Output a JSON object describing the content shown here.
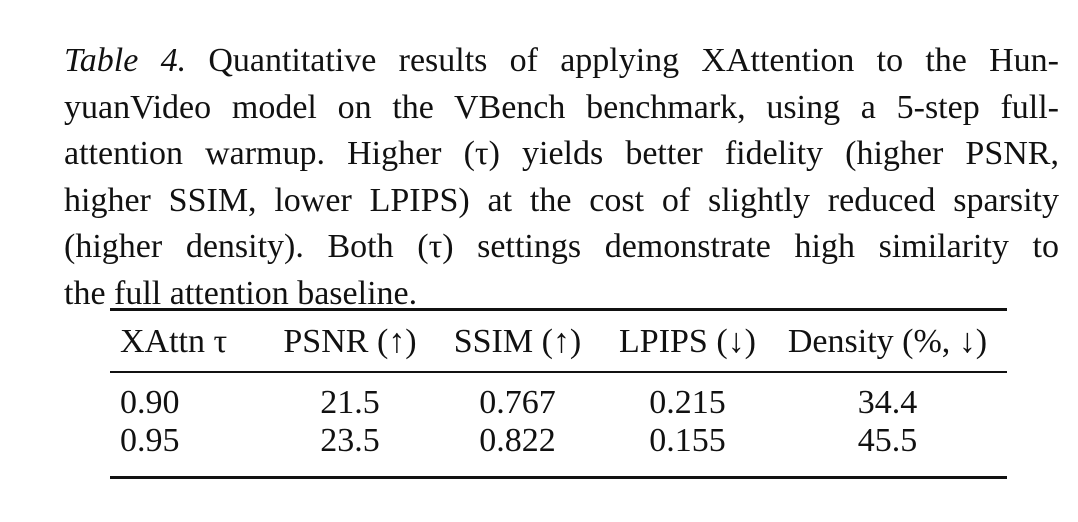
{
  "caption": {
    "label": "Table 4.",
    "lines": [
      " Quantitative results of applying XAttention to the Hun-",
      "yuanVideo model on the VBench benchmark, using a 5-step full-",
      "attention warmup. Higher (τ) yields better fidelity (higher PSNR,",
      "higher SSIM, lower LPIPS) at the cost of slightly reduced sparsity",
      "(higher density). Both (τ) settings demonstrate high similarity to",
      "the full attention baseline."
    ]
  },
  "table": {
    "headers": [
      "XAttn τ",
      "PSNR (↑)",
      "SSIM (↑)",
      "LPIPS (↓)",
      "Density (%, ↓)"
    ],
    "rows": [
      [
        "0.90",
        "21.5",
        "0.767",
        "0.215",
        "34.4"
      ],
      [
        "0.95",
        "23.5",
        "0.822",
        "0.155",
        "45.5"
      ]
    ]
  }
}
